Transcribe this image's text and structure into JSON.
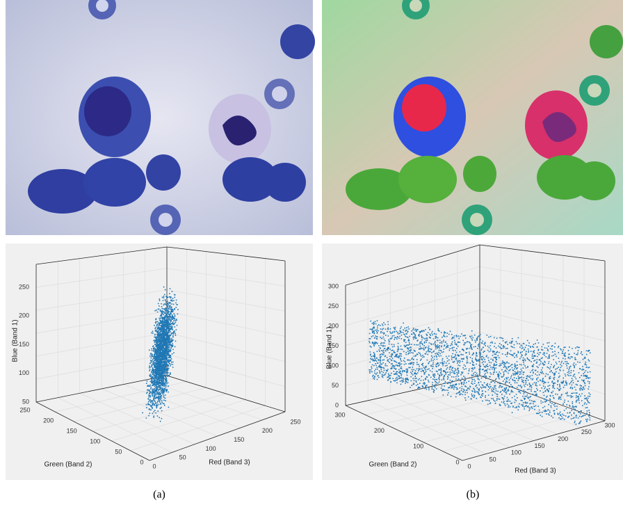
{
  "panels": [
    {
      "caption": "(a)",
      "plot": {
        "z_label": "Blue (Band 1)",
        "y_label": "Green (Band 2)",
        "x_label": "Red (Band 3)",
        "z_ticks": [
          50,
          100,
          150,
          200,
          250
        ],
        "y_ticks": [
          0,
          50,
          100,
          150,
          200,
          250
        ],
        "x_ticks": [
          0,
          50,
          100,
          150,
          200,
          250
        ]
      }
    },
    {
      "caption": "(b)",
      "plot": {
        "z_label": "Blue (Band 1)",
        "y_label": "Green (Band 2)",
        "x_label": "Red (Band 3)",
        "z_ticks": [
          0,
          50,
          100,
          150,
          200,
          250,
          300
        ],
        "y_ticks": [
          0,
          100,
          200,
          300
        ],
        "x_ticks": [
          0,
          50,
          100,
          150,
          200,
          250,
          300
        ]
      }
    }
  ]
}
